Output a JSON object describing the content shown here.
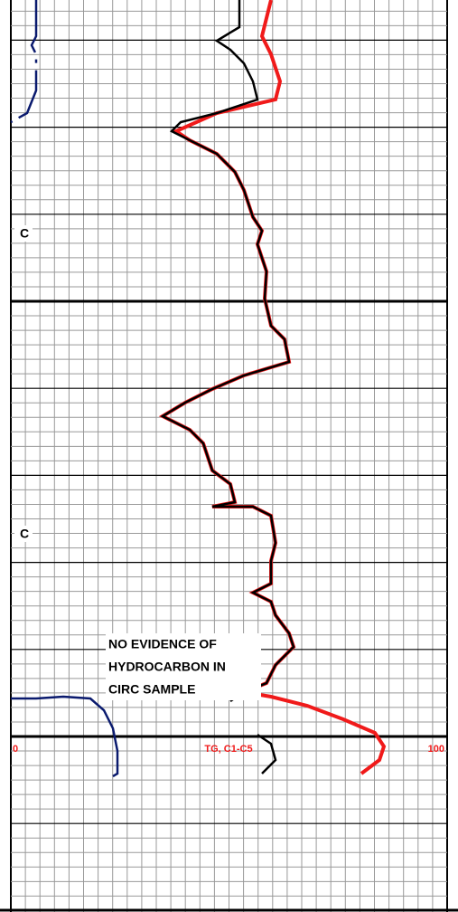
{
  "track_labels": [
    "C",
    "C"
  ],
  "annotation": [
    "NO EVIDENCE OF",
    "HYDROCARBON IN",
    "CIRC SAMPLE"
  ],
  "scale": {
    "left": "0",
    "name": "TG, C1-C5",
    "right": "100"
  }
}
